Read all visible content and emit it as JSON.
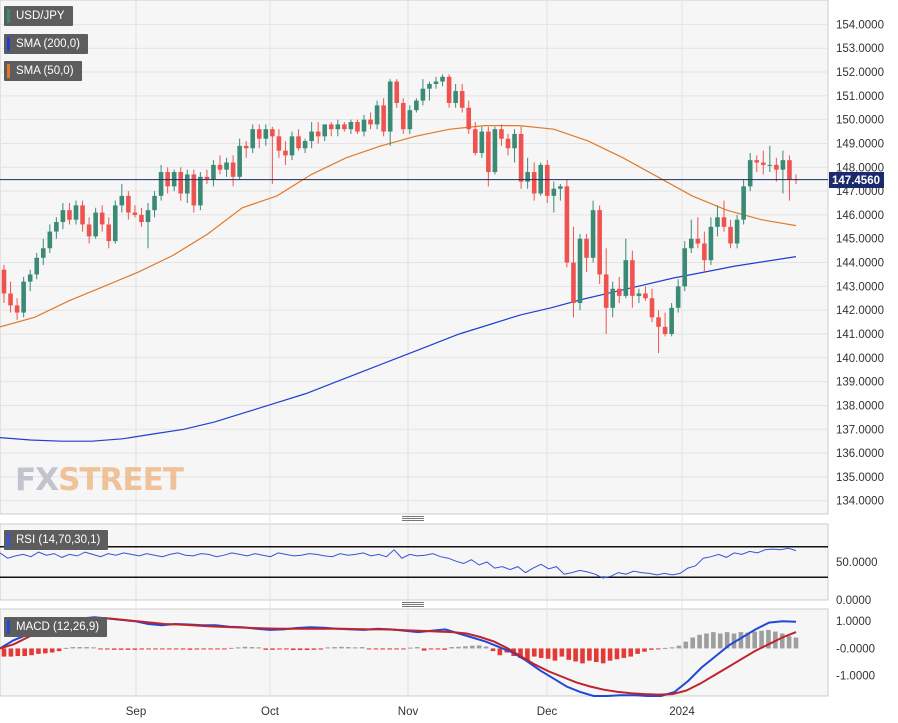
{
  "legend": {
    "symbol": "USD/JPY",
    "sma200": "SMA (200,0)",
    "sma50": "SMA (50,0)",
    "rsi": "RSI (14,70,30,1)",
    "macd": "MACD (12,26,9)"
  },
  "watermark": {
    "fx": "FX",
    "street": "STREET"
  },
  "colors": {
    "up": "#3a8a75",
    "down": "#ef5350",
    "sma200": "#1f3fd1",
    "sma50": "#e27a2a",
    "rsi": "#3553d6",
    "macd_line": "#1f49d6",
    "signal_line": "#c0232c",
    "hist_pos": "#9e9e9e",
    "hist_neg": "#e53935",
    "price_line": "#1b2a6b",
    "grid": "#e3e3e3"
  },
  "chart_data": {
    "type": "candlestick",
    "title": "USD/JPY",
    "price_axis": {
      "ylim": [
        133.3,
        155.0
      ],
      "ticks": [
        "154.0000",
        "153.0000",
        "152.0000",
        "151.0000",
        "150.0000",
        "149.0000",
        "148.0000",
        "147.0000",
        "146.0000",
        "145.0000",
        "144.0000",
        "143.0000",
        "142.0000",
        "141.0000",
        "140.0000",
        "139.0000",
        "138.0000",
        "137.0000",
        "136.0000",
        "135.0000",
        "134.0000"
      ],
      "tick_values": [
        154,
        153,
        152,
        151,
        150,
        149,
        148,
        147,
        146,
        145,
        144,
        143,
        142,
        141,
        140,
        139,
        138,
        137,
        136,
        135,
        134
      ]
    },
    "last_price": {
      "label": "147.4560",
      "value": 147.456
    },
    "x_labels": [
      "Sep",
      "Oct",
      "Nov",
      "Dec",
      "2024"
    ],
    "candles_ohlc": [
      [
        143.7,
        143.9,
        142.3,
        142.7
      ],
      [
        142.7,
        143.2,
        141.9,
        142.2
      ],
      [
        142.2,
        142.5,
        141.6,
        141.9
      ],
      [
        141.9,
        143.4,
        141.7,
        143.2
      ],
      [
        143.2,
        143.7,
        142.8,
        143.5
      ],
      [
        143.5,
        144.4,
        143.3,
        144.2
      ],
      [
        144.2,
        145.0,
        143.9,
        144.6
      ],
      [
        144.6,
        145.6,
        144.4,
        145.3
      ],
      [
        145.3,
        145.9,
        145.0,
        145.7
      ],
      [
        145.7,
        146.5,
        145.4,
        146.2
      ],
      [
        146.2,
        146.5,
        145.6,
        145.8
      ],
      [
        145.8,
        146.6,
        145.6,
        146.4
      ],
      [
        146.4,
        146.6,
        145.3,
        145.6
      ],
      [
        145.6,
        145.9,
        144.8,
        145.1
      ],
      [
        145.1,
        146.3,
        145.0,
        146.1
      ],
      [
        146.1,
        146.4,
        145.3,
        145.6
      ],
      [
        145.6,
        145.9,
        144.6,
        144.9
      ],
      [
        144.9,
        146.6,
        144.8,
        146.4
      ],
      [
        146.4,
        147.3,
        146.1,
        146.8
      ],
      [
        146.8,
        147.0,
        145.8,
        146.1
      ],
      [
        146.1,
        146.4,
        145.9,
        146.0
      ],
      [
        146.0,
        146.3,
        145.5,
        145.7
      ],
      [
        145.7,
        146.5,
        144.6,
        146.2
      ],
      [
        146.2,
        147.0,
        145.9,
        146.8
      ],
      [
        146.8,
        148.1,
        146.6,
        147.8
      ],
      [
        147.8,
        148.0,
        146.9,
        147.2
      ],
      [
        147.2,
        147.9,
        147.0,
        147.8
      ],
      [
        147.8,
        148.0,
        146.6,
        146.9
      ],
      [
        146.9,
        147.9,
        146.5,
        147.7
      ],
      [
        147.7,
        147.9,
        146.1,
        146.4
      ],
      [
        146.4,
        147.8,
        146.2,
        147.6
      ],
      [
        147.6,
        147.9,
        147.3,
        147.5
      ],
      [
        147.5,
        148.3,
        147.2,
        148.1
      ],
      [
        148.1,
        148.5,
        147.7,
        147.9
      ],
      [
        147.9,
        148.4,
        147.6,
        148.2
      ],
      [
        148.2,
        148.5,
        147.2,
        147.6
      ],
      [
        147.6,
        149.2,
        147.5,
        148.9
      ],
      [
        148.9,
        149.1,
        148.4,
        148.8
      ],
      [
        148.8,
        149.8,
        148.6,
        149.6
      ],
      [
        149.6,
        149.8,
        148.8,
        149.2
      ],
      [
        149.2,
        149.8,
        148.9,
        149.6
      ],
      [
        149.6,
        149.7,
        147.3,
        149.3
      ],
      [
        149.3,
        149.6,
        148.4,
        148.7
      ],
      [
        148.7,
        149.1,
        148.1,
        148.5
      ],
      [
        148.5,
        149.5,
        148.3,
        149.3
      ],
      [
        149.3,
        149.6,
        148.7,
        148.8
      ],
      [
        148.8,
        149.2,
        148.6,
        149.1
      ],
      [
        149.1,
        149.9,
        148.8,
        149.5
      ],
      [
        149.5,
        149.9,
        149.0,
        149.3
      ],
      [
        149.3,
        149.8,
        149.1,
        149.8
      ],
      [
        149.8,
        149.9,
        149.3,
        149.6
      ],
      [
        149.6,
        150.0,
        149.3,
        149.8
      ],
      [
        149.8,
        149.9,
        149.5,
        149.6
      ],
      [
        149.6,
        150.0,
        149.4,
        149.9
      ],
      [
        149.9,
        150.0,
        149.4,
        149.5
      ],
      [
        149.5,
        150.2,
        149.3,
        150.0
      ],
      [
        150.0,
        150.3,
        149.6,
        149.8
      ],
      [
        149.8,
        150.8,
        149.6,
        150.6
      ],
      [
        150.6,
        150.9,
        149.3,
        149.5
      ],
      [
        149.5,
        151.7,
        148.9,
        151.6
      ],
      [
        151.6,
        151.7,
        150.5,
        150.7
      ],
      [
        150.7,
        150.9,
        149.4,
        149.6
      ],
      [
        149.6,
        150.6,
        149.4,
        150.4
      ],
      [
        150.4,
        150.9,
        150.3,
        150.8
      ],
      [
        150.8,
        151.7,
        150.6,
        151.3
      ],
      [
        151.3,
        151.6,
        150.8,
        151.5
      ],
      [
        151.5,
        151.8,
        151.3,
        151.6
      ],
      [
        151.6,
        151.9,
        151.4,
        151.8
      ],
      [
        151.8,
        151.9,
        150.5,
        150.7
      ],
      [
        150.7,
        151.5,
        150.5,
        151.2
      ],
      [
        151.2,
        151.5,
        150.3,
        150.5
      ],
      [
        150.5,
        150.8,
        149.4,
        149.6
      ],
      [
        149.6,
        149.9,
        148.5,
        148.6
      ],
      [
        148.6,
        149.7,
        148.4,
        149.5
      ],
      [
        149.5,
        149.7,
        147.2,
        147.8
      ],
      [
        147.8,
        149.7,
        147.7,
        149.6
      ],
      [
        149.6,
        149.8,
        148.9,
        149.2
      ],
      [
        149.2,
        149.4,
        148.5,
        148.8
      ],
      [
        148.8,
        149.6,
        148.2,
        149.4
      ],
      [
        149.4,
        149.7,
        147.1,
        147.4
      ],
      [
        147.4,
        148.4,
        147.1,
        147.8
      ],
      [
        147.8,
        148.2,
        146.6,
        146.9
      ],
      [
        146.9,
        148.2,
        146.8,
        148.1
      ],
      [
        148.1,
        148.3,
        146.5,
        146.8
      ],
      [
        146.8,
        147.4,
        146.1,
        147.1
      ],
      [
        147.1,
        147.3,
        146.6,
        147.2
      ],
      [
        147.2,
        147.5,
        143.8,
        144.0
      ],
      [
        144.0,
        145.5,
        141.7,
        142.3
      ],
      [
        142.3,
        145.2,
        142.0,
        145.0
      ],
      [
        145.0,
        145.2,
        143.6,
        144.2
      ],
      [
        144.2,
        146.6,
        144.0,
        146.2
      ],
      [
        146.2,
        146.4,
        143.1,
        143.5
      ],
      [
        143.5,
        144.6,
        141.0,
        142.1
      ],
      [
        142.1,
        143.2,
        141.7,
        142.9
      ],
      [
        142.9,
        143.4,
        142.3,
        142.6
      ],
      [
        142.6,
        145.0,
        142.5,
        144.1
      ],
      [
        144.1,
        144.5,
        142.1,
        142.6
      ],
      [
        142.6,
        142.9,
        142.3,
        142.7
      ],
      [
        142.7,
        143.0,
        142.4,
        142.5
      ],
      [
        142.5,
        142.9,
        141.5,
        141.7
      ],
      [
        141.7,
        142.0,
        140.2,
        141.3
      ],
      [
        141.3,
        141.9,
        140.9,
        141.0
      ],
      [
        141.0,
        142.3,
        140.9,
        142.1
      ],
      [
        142.1,
        143.3,
        141.9,
        143.0
      ],
      [
        143.0,
        144.9,
        142.8,
        144.6
      ],
      [
        144.6,
        145.8,
        144.4,
        145.0
      ],
      [
        145.0,
        145.9,
        144.6,
        144.8
      ],
      [
        144.8,
        145.3,
        143.6,
        144.1
      ],
      [
        144.1,
        145.9,
        143.9,
        145.5
      ],
      [
        145.5,
        146.4,
        145.1,
        145.9
      ],
      [
        145.9,
        146.6,
        145.3,
        145.5
      ],
      [
        145.5,
        145.8,
        144.6,
        144.8
      ],
      [
        144.8,
        146.0,
        144.6,
        145.8
      ],
      [
        145.8,
        147.5,
        145.6,
        147.2
      ],
      [
        147.2,
        148.6,
        147.0,
        148.3
      ],
      [
        148.3,
        148.5,
        147.8,
        148.2
      ],
      [
        148.2,
        148.7,
        147.7,
        148.1
      ],
      [
        148.1,
        148.9,
        147.8,
        148.1
      ],
      [
        148.1,
        148.4,
        147.4,
        147.9
      ],
      [
        147.9,
        148.7,
        146.9,
        148.3
      ],
      [
        148.3,
        148.5,
        146.6,
        147.5
      ],
      [
        147.5,
        147.7,
        147.3,
        147.46
      ]
    ],
    "sma200_values": [
      136.65,
      136.55,
      136.5,
      136.5,
      136.6,
      136.8,
      137.0,
      137.3,
      137.7,
      138.1,
      138.5,
      139.0,
      139.5,
      140.0,
      140.5,
      141.0,
      141.4,
      141.8,
      142.1,
      142.45,
      142.75,
      143.05,
      143.35,
      143.6,
      143.85,
      144.05,
      144.25
    ],
    "sma50_values": [
      141.3,
      141.7,
      142.4,
      143.0,
      143.6,
      144.3,
      145.2,
      146.3,
      146.8,
      147.7,
      148.4,
      148.9,
      149.3,
      149.6,
      149.75,
      149.75,
      149.6,
      149.1,
      148.4,
      147.6,
      146.8,
      146.2,
      145.8,
      145.55
    ],
    "rsi": {
      "ylim": [
        0,
        100
      ],
      "levels": [
        70,
        30
      ],
      "ticks": [
        "50.0000",
        "0.0000"
      ],
      "tick_values": [
        50,
        0
      ],
      "values": [
        62,
        55,
        58,
        60,
        57,
        63,
        59,
        61,
        56,
        60,
        58,
        63,
        60,
        57,
        61,
        59,
        62,
        60,
        58,
        61,
        59,
        57,
        60,
        62,
        59,
        58,
        61,
        60,
        57,
        59,
        62,
        60,
        58,
        61,
        59,
        57,
        62,
        60,
        58,
        59,
        61,
        60,
        58,
        57,
        61,
        59,
        60,
        62,
        58,
        60,
        57,
        66,
        55,
        60,
        58,
        59,
        61,
        57,
        55,
        51,
        48,
        53,
        46,
        50,
        42,
        44,
        40,
        44,
        36,
        42,
        47,
        41,
        44,
        34,
        36,
        39,
        37,
        34,
        29,
        31,
        36,
        34,
        38,
        36,
        35,
        33,
        35,
        33,
        35,
        42,
        45,
        55,
        57,
        60,
        56,
        62,
        60,
        64,
        62,
        66,
        67,
        66,
        68,
        65
      ]
    },
    "macd": {
      "ylim": [
        -1.75,
        1.45
      ],
      "ticks": [
        "1.0000",
        "-0.0000",
        "-1.0000"
      ],
      "tick_values": [
        1,
        0,
        -1
      ],
      "macd_values": [
        0.0,
        0.3,
        0.5,
        0.75,
        0.9,
        1.0,
        1.1,
        1.15,
        1.1,
        1.05,
        1.0,
        0.9,
        0.85,
        0.9,
        0.88,
        0.85,
        0.85,
        0.8,
        0.78,
        0.72,
        0.68,
        0.7,
        0.75,
        0.78,
        0.76,
        0.72,
        0.7,
        0.68,
        0.72,
        0.7,
        0.65,
        0.6,
        0.65,
        0.7,
        0.55,
        0.4,
        0.25,
        0.05,
        -0.15,
        -0.45,
        -0.8,
        -1.1,
        -1.4,
        -1.6,
        -1.75,
        -1.75,
        -1.72,
        -1.72,
        -1.75,
        -1.75,
        -1.6,
        -1.2,
        -0.7,
        -0.3,
        0.1,
        0.4,
        0.7,
        0.95,
        1.0,
        0.98
      ],
      "signal_values": [
        0.0,
        0.15,
        0.4,
        0.65,
        0.85,
        1.0,
        1.1,
        1.12,
        1.1,
        1.05,
        1.0,
        0.95,
        0.9,
        0.88,
        0.85,
        0.82,
        0.8,
        0.78,
        0.76,
        0.74,
        0.73,
        0.72,
        0.72,
        0.72,
        0.72,
        0.72,
        0.71,
        0.7,
        0.7,
        0.68,
        0.66,
        0.64,
        0.62,
        0.6,
        0.55,
        0.42,
        0.25,
        0.0,
        -0.3,
        -0.6,
        -0.85,
        -1.05,
        -1.25,
        -1.4,
        -1.52,
        -1.6,
        -1.65,
        -1.68,
        -1.7,
        -1.68,
        -1.55,
        -1.3,
        -1.0,
        -0.7,
        -0.4,
        -0.1,
        0.15,
        0.4,
        0.6
      ],
      "hist_values": [
        -0.3,
        -0.3,
        -0.28,
        -0.28,
        -0.25,
        -0.2,
        -0.18,
        -0.15,
        -0.1,
        0.02,
        0.05,
        0.05,
        0.05,
        0.04,
        -0.03,
        -0.04,
        -0.05,
        -0.05,
        -0.05,
        -0.05,
        -0.04,
        -0.03,
        -0.03,
        -0.02,
        -0.02,
        -0.03,
        -0.04,
        -0.05,
        -0.04,
        -0.03,
        -0.03,
        -0.03,
        -0.02,
        0.02,
        0.04,
        0.06,
        0.05,
        0.04,
        -0.05,
        -0.05,
        -0.04,
        -0.04,
        -0.06,
        -0.06,
        -0.06,
        -0.05,
        -0.04,
        0.04,
        0.05,
        0.06,
        0.05,
        0.04,
        0.05,
        -0.02,
        -0.03,
        -0.04,
        -0.04,
        -0.03,
        -0.02,
        0.03,
        0.05,
        -0.08,
        -0.03,
        -0.04,
        -0.05,
        0.05,
        0.06,
        0.08,
        0.1,
        0.11,
        0.07,
        -0.1,
        -0.25,
        -0.15,
        -0.28,
        -0.35,
        -0.45,
        -0.3,
        -0.35,
        -0.38,
        -0.45,
        -0.3,
        -0.42,
        -0.48,
        -0.55,
        -0.45,
        -0.5,
        -0.55,
        -0.45,
        -0.4,
        -0.35,
        -0.3,
        -0.2,
        -0.12,
        -0.05,
        -0.02,
        0.02,
        0.04,
        0.1,
        0.25,
        0.4,
        0.5,
        0.55,
        0.6,
        0.55,
        0.6,
        0.55,
        0.6,
        0.58,
        0.62,
        0.65,
        0.68,
        0.62,
        0.55,
        0.45,
        0.4
      ]
    }
  }
}
